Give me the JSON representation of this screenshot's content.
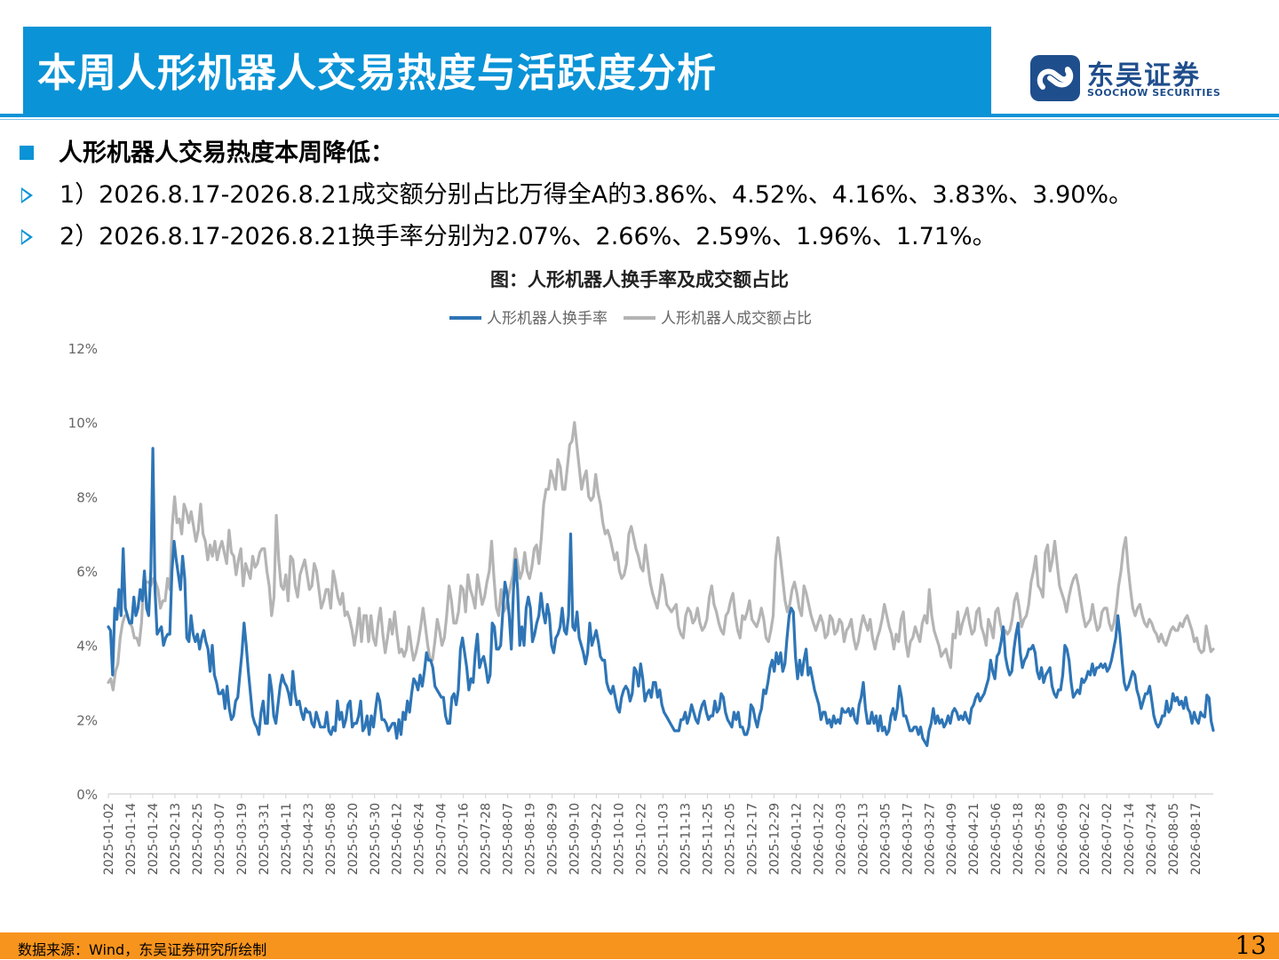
{
  "header": {
    "title": "本周人形机器人交易热度与活跃度分析",
    "logo_cn": "东吴证券",
    "logo_en": "SOOCHOW SECURITIES"
  },
  "bullets": {
    "heading": "人形机器人交易热度本周降低：",
    "point1": "1）2026.8.17-2026.8.21成交额分别占比万得全A的3.86%、4.52%、4.16%、3.83%、3.90%。",
    "point2": "2）2026.8.17-2026.8.21换手率分别为2.07%、2.66%、2.59%、1.96%、1.71%。"
  },
  "footer": {
    "source": "数据来源：Wind，东吴证券研究所绘制",
    "page_number": "13"
  },
  "colors": {
    "accent": "#0a93d6",
    "footer": "#f7941d",
    "turnover": "#2e75b6",
    "share": "#b4b4b4"
  },
  "chart_data": {
    "type": "line",
    "title": "图：人形机器人换手率及成交额占比",
    "xlabel": "",
    "ylabel": "",
    "ylim": [
      0,
      12
    ],
    "y_ticks": [
      "0%",
      "2%",
      "4%",
      "6%",
      "8%",
      "10%",
      "12%"
    ],
    "legend_position": "top-center",
    "grid": false,
    "x_tick_labels": [
      "2025-01-02",
      "2025-01-14",
      "2025-01-24",
      "2025-02-13",
      "2025-02-25",
      "2025-03-07",
      "2025-03-19",
      "2025-03-31",
      "2025-04-11",
      "2025-04-23",
      "2025-05-08",
      "2025-05-20",
      "2025-05-30",
      "2025-06-12",
      "2025-06-24",
      "2025-07-04",
      "2025-07-16",
      "2025-07-28",
      "2025-08-07",
      "2025-08-19",
      "2025-08-29",
      "2025-09-10",
      "2025-09-22",
      "2025-10-10",
      "2025-10-22",
      "2025-11-03",
      "2025-11-13",
      "2025-11-25",
      "2025-12-05",
      "2025-12-17",
      "2025-12-29",
      "2026-01-12",
      "2026-01-22",
      "2026-02-03",
      "2026-02-13",
      "2026-03-05",
      "2026-03-17",
      "2026-03-27",
      "2026-04-09",
      "2026-04-21",
      "2026-05-06",
      "2026-05-18",
      "2026-05-28",
      "2026-06-09",
      "2026-06-22",
      "2026-07-02",
      "2026-07-14",
      "2026-07-24",
      "2026-08-05",
      "2026-08-17"
    ],
    "series": [
      {
        "name": "人形机器人换手率",
        "color": "#2e75b6",
        "values": [
          4.5,
          4.4,
          3.2,
          5.0,
          4.7,
          5.5,
          4.8,
          6.6,
          5.0,
          4.8,
          4.6,
          4.6,
          5.3,
          4.8,
          5.0,
          5.5,
          5.2,
          6.0,
          5.0,
          4.8,
          6.0,
          9.3,
          5.5,
          4.3,
          4.4,
          4.5,
          4.0,
          4.2,
          4.3,
          4.3,
          6.0,
          6.8,
          6.3,
          5.9,
          5.5,
          6.4,
          5.8,
          4.2,
          4.1,
          4.8,
          4.3,
          4.1,
          4.3,
          3.9,
          4.2,
          4.4,
          4.1,
          3.9,
          3.3,
          4.0,
          3.2,
          3.0,
          2.7,
          2.7,
          2.8,
          2.3,
          2.9,
          2.3,
          2.0,
          2.1,
          2.5,
          2.6,
          3.2,
          3.8,
          4.6,
          4.0,
          3.3,
          2.7,
          2.1,
          1.9,
          1.8,
          1.6,
          2.2,
          2.5,
          1.9,
          1.9,
          3.2,
          2.8,
          2.1,
          1.9,
          2.4,
          2.9,
          3.2,
          3.0,
          2.9,
          2.7,
          2.4,
          3.3,
          2.7,
          2.4,
          2.5,
          2.2,
          2.0,
          2.3,
          2.2,
          2.2,
          1.9,
          1.8,
          2.2,
          2.0,
          1.8,
          1.8,
          1.8,
          2.2,
          1.7,
          1.6,
          1.8,
          1.7,
          2.5,
          2.0,
          2.2,
          1.8,
          2.0,
          2.4,
          2.5,
          1.8,
          1.9,
          1.9,
          2.1,
          2.5,
          1.7,
          1.8,
          2.1,
          1.6,
          2.1,
          1.8,
          2.3,
          2.7,
          2.5,
          2.0,
          2.0,
          1.9,
          1.7,
          1.8,
          1.9,
          1.9,
          1.5,
          2.0,
          1.6,
          2.2,
          2.0,
          2.5,
          2.2,
          2.7,
          3.1,
          3.0,
          2.8,
          3.2,
          2.9,
          3.3,
          3.8,
          3.6,
          3.6,
          3.4,
          2.9,
          2.8,
          2.7,
          2.6,
          2.6,
          2.1,
          1.9,
          1.9,
          2.6,
          2.7,
          2.4,
          2.8,
          3.9,
          4.2,
          3.8,
          3.4,
          2.8,
          3.1,
          3.0,
          3.8,
          4.3,
          3.4,
          3.6,
          3.7,
          3.4,
          3.0,
          3.2,
          4.6,
          4.5,
          3.9,
          3.9,
          4.0,
          4.9,
          5.7,
          5.4,
          4.8,
          3.9,
          5.5,
          6.3,
          5.5,
          4.0,
          4.5,
          4.0,
          5.0,
          5.3,
          5.0,
          4.1,
          4.3,
          4.6,
          4.8,
          5.4,
          4.9,
          4.6,
          5.1,
          4.8,
          4.0,
          3.8,
          4.2,
          4.3,
          4.5,
          5.0,
          4.4,
          4.3,
          4.8,
          7.0,
          4.5,
          4.4,
          4.9,
          4.2,
          4.0,
          3.8,
          3.5,
          3.8,
          4.6,
          4.0,
          4.2,
          4.4,
          4.1,
          3.7,
          3.6,
          3.6,
          3.0,
          2.8,
          2.7,
          2.9,
          2.6,
          2.3,
          2.2,
          2.6,
          2.8,
          2.9,
          2.8,
          2.5,
          2.7,
          3.4,
          3.3,
          2.9,
          3.5,
          3.1,
          2.5,
          2.7,
          2.8,
          2.6,
          3.0,
          3.0,
          2.6,
          2.8,
          2.4,
          2.2,
          2.1,
          2.0,
          1.9,
          1.8,
          1.7,
          1.7,
          1.7,
          2.0,
          2.0,
          2.2,
          1.9,
          2.1,
          2.4,
          2.2,
          2.0,
          1.9,
          2.2,
          2.4,
          2.5,
          2.2,
          2.0,
          2.1,
          2.1,
          2.5,
          2.2,
          2.3,
          2.7,
          2.6,
          2.2,
          2.0,
          1.9,
          1.8,
          2.2,
          2.0,
          2.2,
          1.8,
          1.8,
          1.6,
          1.6,
          1.8,
          2.4,
          2.3,
          2.0,
          1.8,
          2.1,
          2.3,
          2.8,
          2.7,
          3.0,
          3.4,
          3.6,
          3.3,
          3.8,
          3.5,
          3.8,
          3.3,
          3.5,
          4.2,
          4.8,
          5.0,
          4.9,
          3.7,
          3.1,
          3.6,
          3.2,
          3.6,
          3.9,
          3.2,
          3.4,
          3.1,
          2.8,
          2.6,
          2.4,
          2.0,
          2.2,
          2.2,
          1.9,
          2.0,
          1.8,
          2.1,
          1.9,
          2.0,
          1.9,
          2.3,
          2.2,
          2.2,
          2.3,
          2.1,
          2.3,
          2.0,
          1.9,
          2.4,
          2.6,
          3.0,
          2.3,
          1.9,
          1.9,
          2.2,
          1.9,
          2.1,
          1.7,
          2.1,
          1.7,
          1.8,
          1.6,
          1.7,
          2.1,
          2.3,
          2.0,
          2.3,
          2.9,
          2.6,
          2.1,
          2.1,
          1.9,
          1.7,
          1.7,
          1.8,
          1.8,
          1.6,
          1.8,
          1.5,
          1.4,
          1.3,
          1.7,
          1.9,
          2.3,
          1.9,
          2.1,
          1.9,
          2.0,
          1.8,
          1.9,
          2.1,
          1.9,
          2.2,
          2.3,
          2.2,
          2.0,
          2.1,
          2.0,
          2.2,
          2.0,
          1.9,
          2.3,
          2.4,
          2.6,
          2.7,
          2.5,
          2.6,
          2.7,
          2.9,
          3.1,
          3.6,
          3.3,
          3.1,
          3.7,
          3.8,
          4.1,
          4.5,
          3.7,
          3.4,
          3.2,
          3.3,
          3.9,
          4.3,
          4.6,
          3.8,
          3.4,
          3.6,
          3.7,
          3.9,
          3.9,
          4.0,
          3.8,
          3.3,
          3.1,
          3.4,
          3.0,
          3.2,
          3.3,
          3.4,
          2.9,
          2.7,
          2.6,
          2.8,
          2.8,
          3.2,
          4.0,
          3.9,
          3.6,
          3.0,
          2.6,
          2.7,
          2.8,
          2.7,
          3.1,
          3.0,
          3.1,
          3.3,
          3.2,
          3.5,
          3.2,
          3.4,
          3.4,
          3.5,
          3.4,
          3.5,
          3.3,
          3.4,
          3.6,
          3.9,
          4.2,
          4.8,
          4.3,
          3.6,
          3.0,
          2.8,
          2.9,
          3.1,
          3.3,
          3.2,
          2.8,
          2.6,
          2.3,
          2.5,
          2.7,
          2.7,
          2.9,
          2.5,
          2.1,
          1.9,
          1.8,
          1.9,
          2.1,
          2.1,
          2.5,
          2.2,
          2.3,
          2.7,
          2.5,
          2.6,
          2.4,
          2.5,
          2.3,
          2.6,
          2.3,
          2.2,
          1.9,
          2.2,
          2.0,
          1.9,
          2.2,
          2.1,
          2.07,
          2.66,
          2.59,
          1.96,
          1.71
        ]
      },
      {
        "name": "人形机器人成交额占比",
        "color": "#b4b4b4",
        "values": [
          3.0,
          3.1,
          2.8,
          3.3,
          3.5,
          4.2,
          4.6,
          4.8,
          4.8,
          4.6,
          4.5,
          4.2,
          4.2,
          4.0,
          4.6,
          5.8,
          5.7,
          5.7,
          5.6,
          5.8,
          5.7,
          5.5,
          5.0,
          5.2,
          5.2,
          5.8,
          5.5,
          7.2,
          8.0,
          7.3,
          7.4,
          7.0,
          7.8,
          7.6,
          7.3,
          7.6,
          7.2,
          6.8,
          7.1,
          7.8,
          7.0,
          6.8,
          6.3,
          6.7,
          6.4,
          6.8,
          6.3,
          6.6,
          6.8,
          6.5,
          6.2,
          7.1,
          6.5,
          6.4,
          5.9,
          6.3,
          6.6,
          5.6,
          6.2,
          6.0,
          5.8,
          6.4,
          6.1,
          6.2,
          6.5,
          6.6,
          6.6,
          6.0,
          5.6,
          4.8,
          5.3,
          7.5,
          6.3,
          5.6,
          5.5,
          5.9,
          5.2,
          6.4,
          6.3,
          5.6,
          5.3,
          5.9,
          6.1,
          6.3,
          5.9,
          5.5,
          5.6,
          6.2,
          6.0,
          5.5,
          5.0,
          5.2,
          5.5,
          5.5,
          5.0,
          6.0,
          5.7,
          5.3,
          5.1,
          5.4,
          4.8,
          4.9,
          4.7,
          4.4,
          4.0,
          4.4,
          5.0,
          4.1,
          4.8,
          4.8,
          4.1,
          4.8,
          4.2,
          4.0,
          4.6,
          5.0,
          4.3,
          3.8,
          4.2,
          4.7,
          4.3,
          4.9,
          4.3,
          3.8,
          3.9,
          3.7,
          3.9,
          4.5,
          4.0,
          3.6,
          3.8,
          4.1,
          4.5,
          5.0,
          4.5,
          4.0,
          3.6,
          3.6,
          4.1,
          4.7,
          4.4,
          4.0,
          4.2,
          4.8,
          5.6,
          5.2,
          4.6,
          4.6,
          4.9,
          5.6,
          5.5,
          4.9,
          5.9,
          5.5,
          5.3,
          5.0,
          5.9,
          5.5,
          5.1,
          5.3,
          5.7,
          6.0,
          6.8,
          5.8,
          5.0,
          4.8,
          5.5,
          4.9,
          5.0,
          5.3,
          5.6,
          5.9,
          6.6,
          6.2,
          5.8,
          6.0,
          6.5,
          6.0,
          5.8,
          6.1,
          6.6,
          6.7,
          6.2,
          6.9,
          7.8,
          8.2,
          8.2,
          8.7,
          8.5,
          8.2,
          9.0,
          8.8,
          8.2,
          8.2,
          8.8,
          9.4,
          9.5,
          10.0,
          9.4,
          8.8,
          8.2,
          8.5,
          8.7,
          8.0,
          7.9,
          8.0,
          8.6,
          8.1,
          7.8,
          7.3,
          7.0,
          7.1,
          6.9,
          6.6,
          6.3,
          6.5,
          6.0,
          5.8,
          5.9,
          6.2,
          7.0,
          7.2,
          6.9,
          6.6,
          6.4,
          6.1,
          6.0,
          6.7,
          6.2,
          5.7,
          5.4,
          5.2,
          5.0,
          5.4,
          5.9,
          5.6,
          5.1,
          5.0,
          4.9,
          5.0,
          5.1,
          4.5,
          4.3,
          4.2,
          4.8,
          5.0,
          4.9,
          4.6,
          4.7,
          5.0,
          4.6,
          4.4,
          4.5,
          4.7,
          5.3,
          5.6,
          5.1,
          4.9,
          4.6,
          4.4,
          4.3,
          4.8,
          4.9,
          5.2,
          5.4,
          4.8,
          4.4,
          4.2,
          4.8,
          4.7,
          4.9,
          5.2,
          4.7,
          4.6,
          4.5,
          4.7,
          5.0,
          4.7,
          4.2,
          4.1,
          4.4,
          4.8,
          6.3,
          6.9,
          6.4,
          5.8,
          5.2,
          4.9,
          5.1,
          5.5,
          5.7,
          5.4,
          5.0,
          4.8,
          5.6,
          5.4,
          5.1,
          4.8,
          4.6,
          4.4,
          4.6,
          4.8,
          4.6,
          4.2,
          4.3,
          4.8,
          4.7,
          4.3,
          4.4,
          4.7,
          4.6,
          4.1,
          4.4,
          4.5,
          4.7,
          4.2,
          3.9,
          4.1,
          4.5,
          4.8,
          4.6,
          4.4,
          4.7,
          4.2,
          3.9,
          4.2,
          4.4,
          4.7,
          5.1,
          4.8,
          4.5,
          4.3,
          3.9,
          4.3,
          4.1,
          4.7,
          4.9,
          4.1,
          3.7,
          4.1,
          4.2,
          4.5,
          4.3,
          4.1,
          4.6,
          4.8,
          4.6,
          5.5,
          4.8,
          4.4,
          4.2,
          4.0,
          3.7,
          3.8,
          3.9,
          3.6,
          3.4,
          4.3,
          4.2,
          4.9,
          4.3,
          4.6,
          4.8,
          5.0,
          4.6,
          4.3,
          4.4,
          4.9,
          5.0,
          4.5,
          4.3,
          4.0,
          4.7,
          4.5,
          4.2,
          4.9,
          5.0,
          4.6,
          4.3,
          4.4,
          4.3,
          4.4,
          4.7,
          5.2,
          5.4,
          5.0,
          4.5,
          4.7,
          4.8,
          5.1,
          5.7,
          6.0,
          6.4,
          5.6,
          5.5,
          5.3,
          6.5,
          6.7,
          6.0,
          6.3,
          6.8,
          6.2,
          5.6,
          5.4,
          5.2,
          4.9,
          5.3,
          5.6,
          5.8,
          5.9,
          5.6,
          5.2,
          4.8,
          4.5,
          4.6,
          4.7,
          5.1,
          4.7,
          4.4,
          4.5,
          4.9,
          5.0,
          5.0,
          4.6,
          4.4,
          4.6,
          5.0,
          5.6,
          6.0,
          6.6,
          6.9,
          6.1,
          5.5,
          5.0,
          4.8,
          5.0,
          5.1,
          4.8,
          4.6,
          4.5,
          4.7,
          4.6,
          4.4,
          4.3,
          4.1,
          4.3,
          4.1,
          4.0,
          4.2,
          4.4,
          4.5,
          4.4,
          4.4,
          4.6,
          4.5,
          4.7,
          4.8,
          4.6,
          4.4,
          4.1,
          4.2,
          3.9,
          3.8,
          3.86,
          4.52,
          4.16,
          3.83,
          3.9
        ]
      }
    ]
  }
}
